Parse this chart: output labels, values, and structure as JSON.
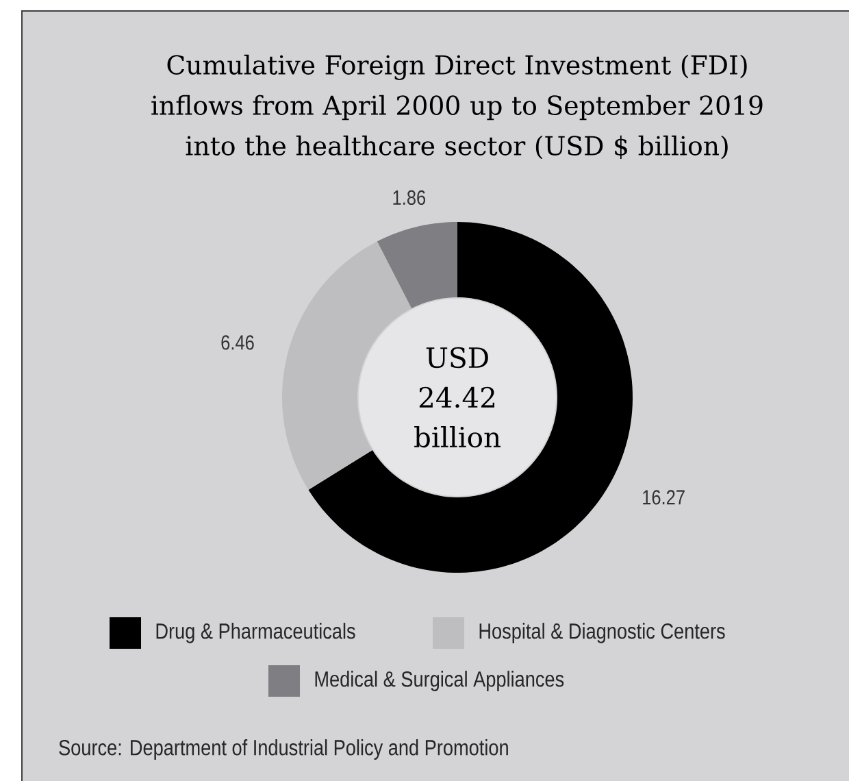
{
  "chart_data": {
    "type": "donut",
    "title": "Cumulative Foreign Direct Investment (FDI) inflows from April 2000 up to September 2019 into the healthcare sector (USD $ billion)",
    "categories": [
      "Drug & Pharmaceuticals",
      "Hospital & Diagnostic Centers",
      "Medical & Surgical Appliances"
    ],
    "values": [
      16.27,
      6.46,
      1.86
    ],
    "colors": [
      "#000000",
      "#bebec0",
      "#7f7f83"
    ],
    "data_labels": true,
    "legend": "bottom",
    "annotations": [
      "USD 24.42 billion",
      "Source: Department of Industrial Policy and Promotion"
    ]
  }
}
